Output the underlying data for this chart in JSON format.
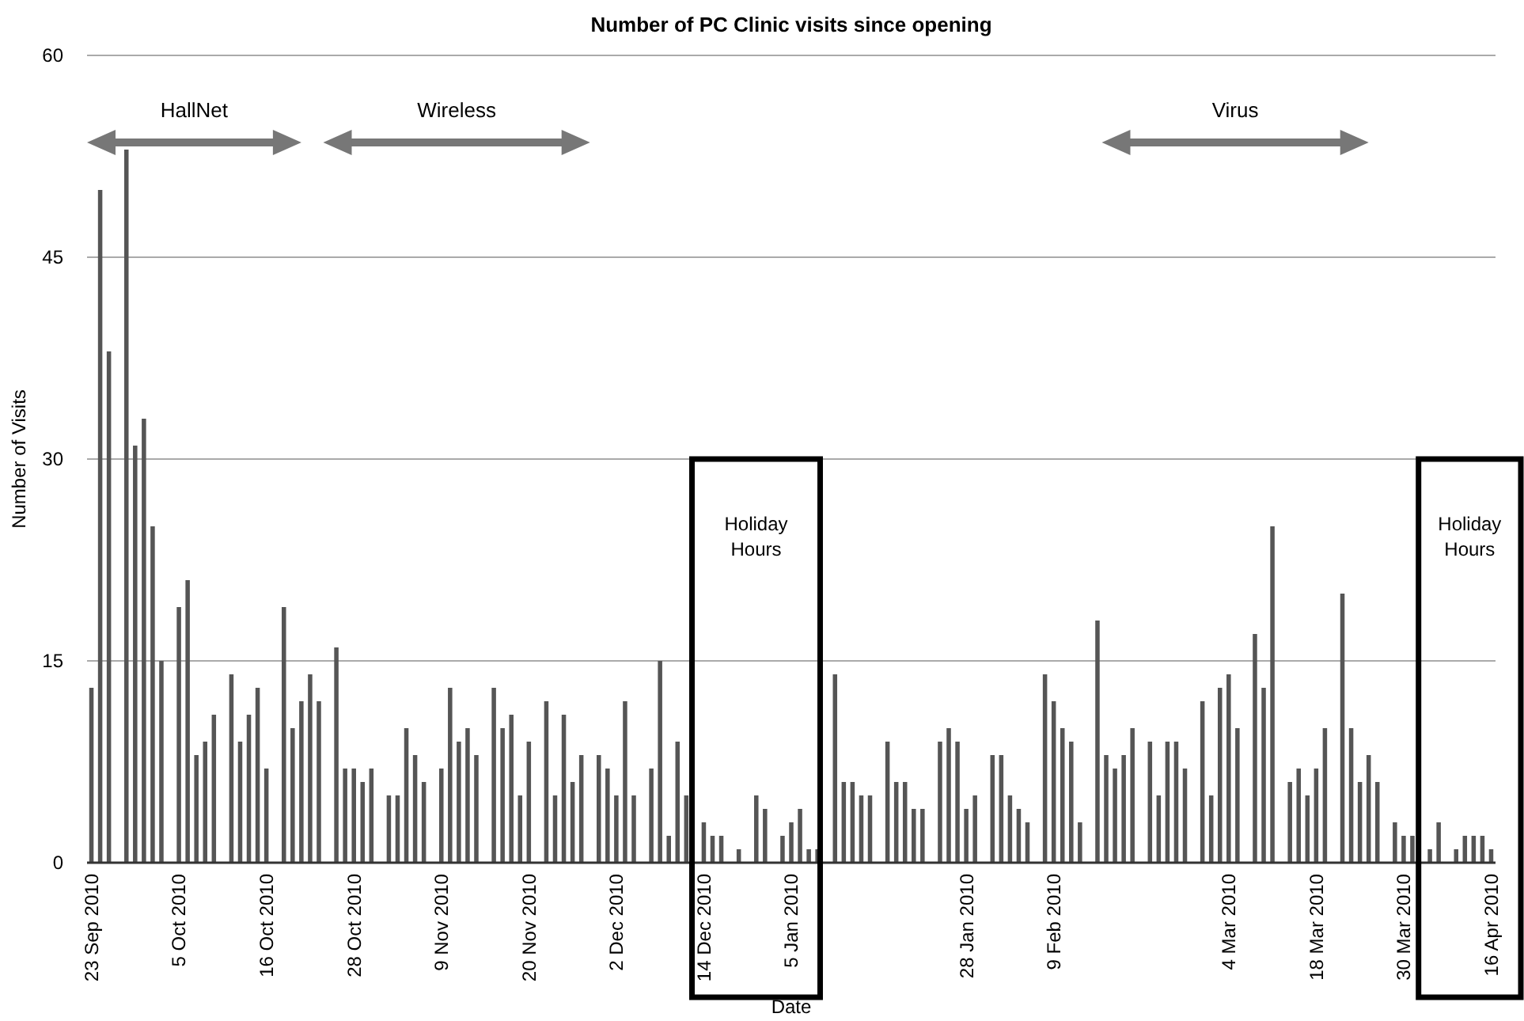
{
  "chart_data": {
    "type": "bar",
    "title": "Number of PC Clinic visits since opening",
    "xlabel": "Date",
    "ylabel": "Number of Visits",
    "categories": [
      "23 Sep 2010",
      null,
      null,
      null,
      null,
      null,
      null,
      null,
      null,
      null,
      "5 Oct 2010",
      null,
      null,
      null,
      null,
      null,
      null,
      null,
      null,
      null,
      "16 Oct 2010",
      null,
      null,
      null,
      null,
      null,
      null,
      null,
      null,
      null,
      "28 Oct 2010",
      null,
      null,
      null,
      null,
      null,
      null,
      null,
      null,
      null,
      "9 Nov 2010",
      null,
      null,
      null,
      null,
      null,
      null,
      null,
      null,
      null,
      "20 Nov 2010",
      null,
      null,
      null,
      null,
      null,
      null,
      null,
      null,
      null,
      "2 Dec 2010",
      null,
      null,
      null,
      null,
      null,
      null,
      null,
      null,
      null,
      "14 Dec 2010",
      null,
      null,
      null,
      null,
      null,
      null,
      null,
      null,
      null,
      "5 Jan 2010",
      null,
      null,
      null,
      null,
      null,
      null,
      null,
      null,
      null,
      null,
      null,
      null,
      null,
      null,
      null,
      null,
      null,
      null,
      null,
      "28 Jan 2010",
      null,
      null,
      null,
      null,
      null,
      null,
      null,
      null,
      null,
      "9 Feb 2010",
      null,
      null,
      null,
      null,
      null,
      null,
      null,
      null,
      null,
      null,
      null,
      null,
      null,
      null,
      null,
      null,
      null,
      null,
      null,
      "4 Mar 2010",
      null,
      null,
      null,
      null,
      null,
      null,
      null,
      null,
      null,
      "18 Mar 2010",
      null,
      null,
      null,
      null,
      null,
      null,
      null,
      null,
      null,
      "30 Mar 2010",
      null,
      null,
      null,
      null,
      null,
      null,
      null,
      null,
      null,
      "16 Apr 2010"
    ],
    "values": [
      13,
      50,
      38,
      null,
      53,
      31,
      33,
      25,
      15,
      null,
      19,
      21,
      8,
      9,
      11,
      null,
      14,
      9,
      11,
      13,
      7,
      null,
      19,
      10,
      12,
      14,
      12,
      null,
      16,
      7,
      7,
      6,
      7,
      null,
      5,
      5,
      10,
      8,
      6,
      null,
      7,
      13,
      9,
      10,
      8,
      null,
      13,
      10,
      11,
      5,
      9,
      null,
      12,
      5,
      11,
      6,
      8,
      null,
      8,
      7,
      5,
      12,
      5,
      null,
      7,
      15,
      2,
      9,
      5,
      null,
      3,
      2,
      2,
      null,
      1,
      null,
      5,
      4,
      null,
      2,
      3,
      4,
      1,
      1,
      null,
      14,
      6,
      6,
      5,
      5,
      null,
      9,
      6,
      6,
      4,
      4,
      null,
      9,
      10,
      9,
      4,
      5,
      null,
      8,
      8,
      5,
      4,
      3,
      null,
      14,
      12,
      10,
      9,
      3,
      null,
      18,
      8,
      7,
      8,
      10,
      null,
      9,
      5,
      9,
      9,
      7,
      null,
      12,
      5,
      13,
      14,
      10,
      null,
      17,
      13,
      25,
      null,
      6,
      7,
      5,
      7,
      10,
      null,
      20,
      10,
      6,
      8,
      6,
      null,
      3,
      2,
      2,
      null,
      1,
      3,
      null,
      1,
      2,
      2,
      2,
      1
    ],
    "color": "#555555",
    "ylim": [
      0,
      60
    ],
    "yticks": [
      0,
      15,
      30,
      45,
      60
    ],
    "grid": "y",
    "annotations": [
      "HallNet",
      "Wireless",
      "Virus",
      "Holiday Hours",
      "Holiday Hours"
    ]
  }
}
